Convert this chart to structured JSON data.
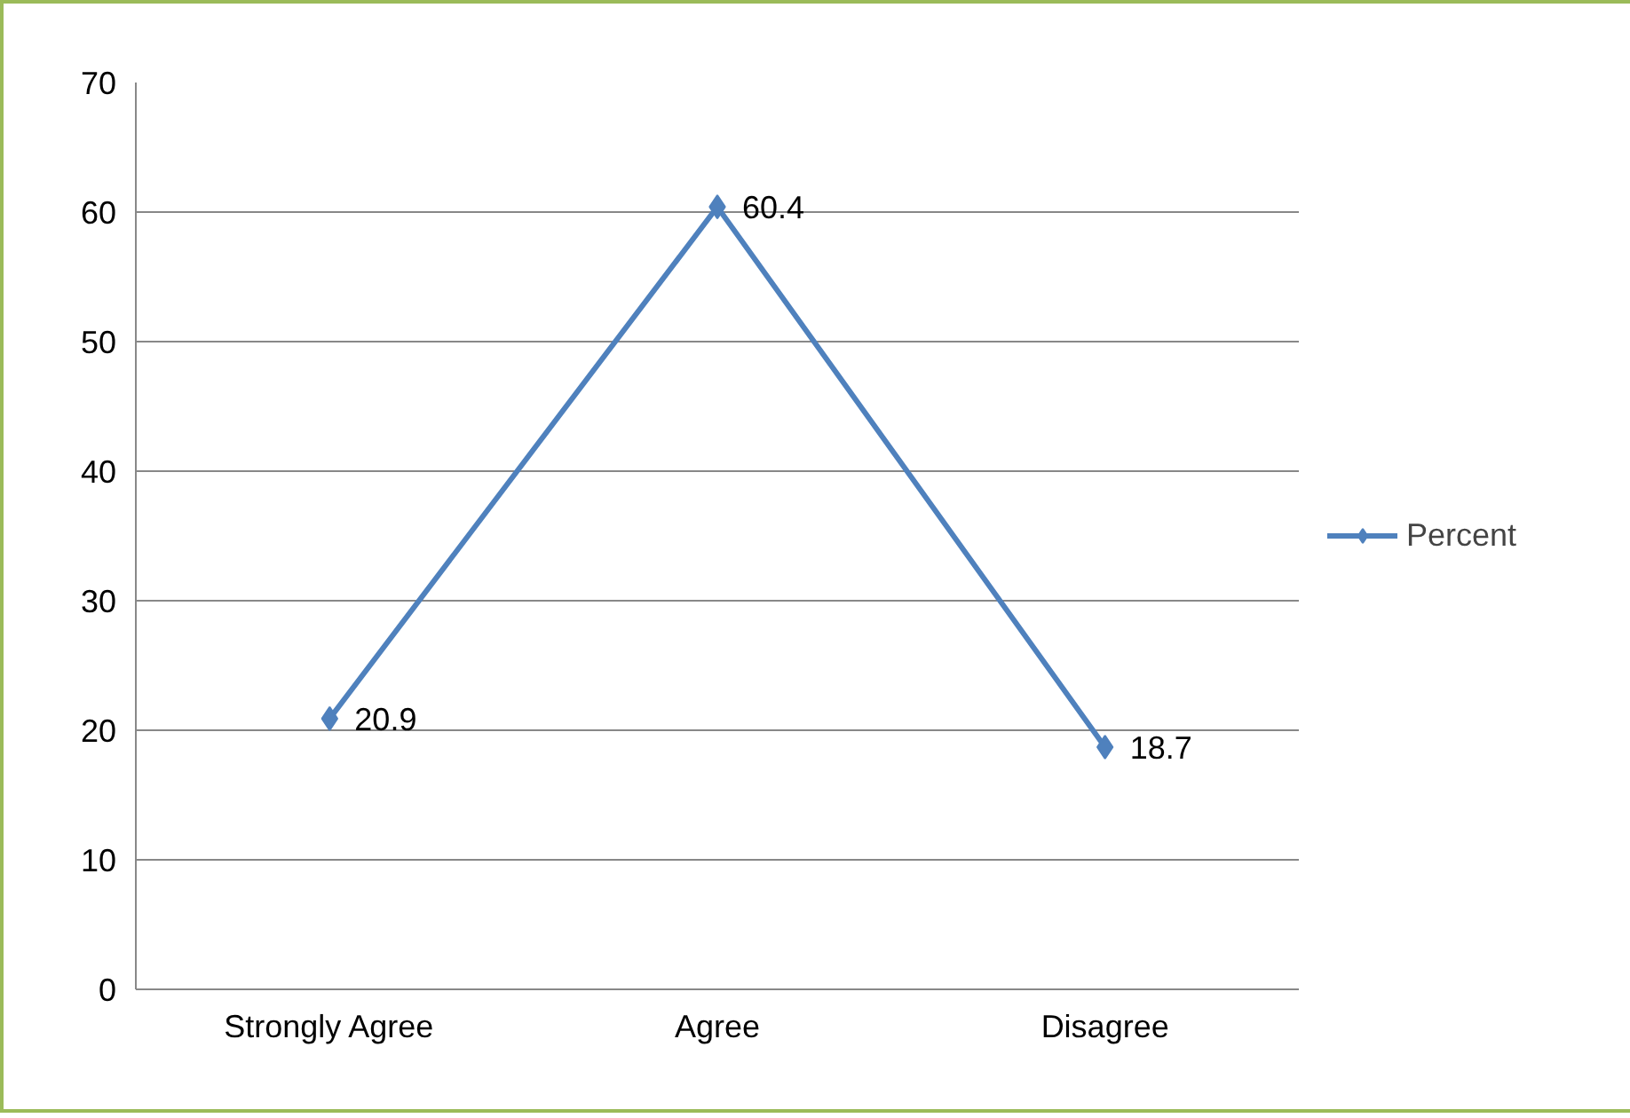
{
  "chart_data": {
    "type": "line",
    "categories": [
      "Strongly Agree",
      "Agree",
      "Disagree"
    ],
    "series": [
      {
        "name": "Percent",
        "color": "#4f81bd",
        "values": [
          20.9,
          60.4,
          18.7
        ]
      }
    ],
    "ylim": [
      0,
      70
    ],
    "yticks": [
      0,
      10,
      20,
      30,
      40,
      50,
      60,
      70
    ],
    "grid": "y",
    "legend": "right",
    "marker": "diamond",
    "data_labels": true
  }
}
